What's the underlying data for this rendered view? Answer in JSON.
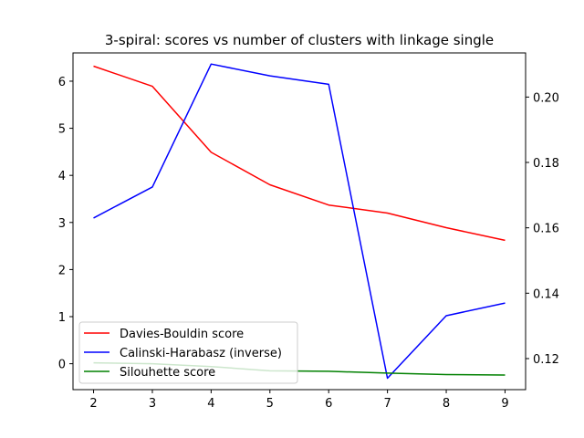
{
  "chart_data": {
    "type": "line",
    "title": "3-spiral: scores vs number of clusters with linkage single",
    "x": [
      2,
      3,
      4,
      5,
      6,
      7,
      8,
      9
    ],
    "x_ticks": [
      "2",
      "3",
      "4",
      "5",
      "6",
      "7",
      "8",
      "9"
    ],
    "left_axis": {
      "ylim": [
        -0.55,
        6.6
      ],
      "ticks": [
        0,
        1,
        2,
        3,
        4,
        5,
        6
      ],
      "tick_labels": [
        "0",
        "1",
        "2",
        "3",
        "4",
        "5",
        "6"
      ]
    },
    "right_axis": {
      "ylim": [
        0.1105,
        0.2135
      ],
      "ticks": [
        0.12,
        0.14,
        0.16,
        0.18,
        0.2
      ],
      "tick_labels": [
        "0.12",
        "0.14",
        "0.16",
        "0.18",
        "0.20"
      ]
    },
    "series": [
      {
        "name": "Davies-Bouldin score",
        "axis": "left",
        "color": "#ff0000",
        "values": [
          6.32,
          5.89,
          4.49,
          3.8,
          3.37,
          3.2,
          2.89,
          2.62
        ]
      },
      {
        "name": "Calinski-Harabasz (inverse)",
        "axis": "right",
        "color": "#0000ff",
        "values": [
          0.163,
          0.1725,
          0.2101,
          0.2065,
          0.2039,
          0.114,
          0.1331,
          0.137
        ]
      },
      {
        "name": "Silouhette score",
        "axis": "left",
        "color": "#008000",
        "values": [
          0.02,
          0.0,
          -0.06,
          -0.15,
          -0.16,
          -0.2,
          -0.23,
          -0.24
        ]
      }
    ],
    "legend": {
      "position": "lower-left",
      "entries": [
        "Davies-Bouldin score",
        "Calinski-Harabasz (inverse)",
        "Silouhette score"
      ]
    }
  }
}
